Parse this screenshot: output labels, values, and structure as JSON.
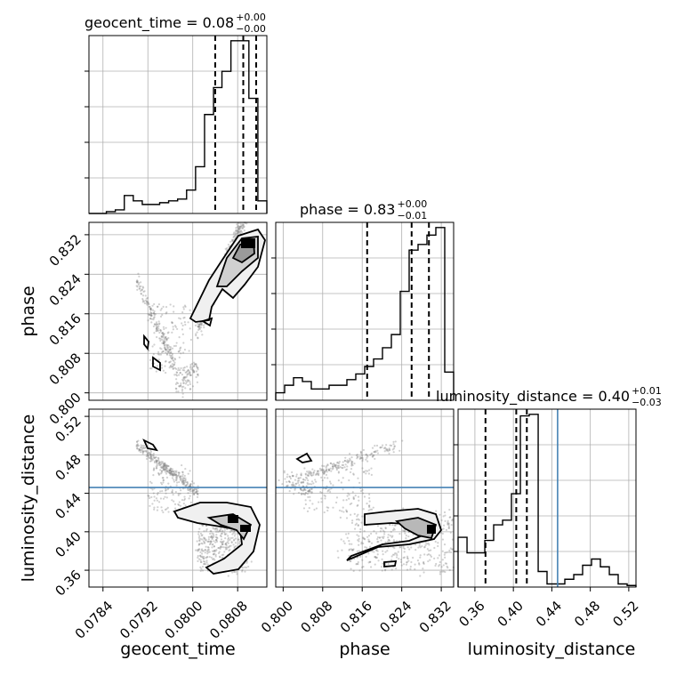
{
  "chart_data": {
    "type": "corner",
    "parameters": [
      "geocent_time",
      "phase",
      "luminosity_distance"
    ],
    "titles": [
      {
        "base": "geocent_time = 0.08",
        "sup": "+0.00",
        "sub": "−0.00"
      },
      {
        "base": "phase = 0.83",
        "sup": "+0.00",
        "sub": "−0.01"
      },
      {
        "base": "luminosity_distance = 0.40",
        "sup": "+0.01",
        "sub": "−0.03"
      }
    ],
    "axes": {
      "geocent_time": {
        "range": [
          0.07815,
          0.08132
        ],
        "ticks": [
          "0.0784",
          "0.0792",
          "0.0800",
          "0.0808"
        ],
        "tick_values": [
          0.0784,
          0.0792,
          0.08,
          0.0808
        ]
      },
      "phase": {
        "range": [
          0.7985,
          0.8345
        ],
        "ticks": [
          "0.800",
          "0.808",
          "0.816",
          "0.824",
          "0.832"
        ],
        "tick_values": [
          0.8,
          0.808,
          0.816,
          0.824,
          0.832
        ]
      },
      "luminosity_distance": {
        "range": [
          0.3425,
          0.5275
        ],
        "ticks": [
          "0.36",
          "0.40",
          "0.44",
          "0.48",
          "0.52"
        ],
        "tick_values": [
          0.36,
          0.4,
          0.44,
          0.48,
          0.52
        ]
      }
    },
    "quantiles": {
      "geocent_time": [
        0.0804,
        0.0809,
        0.08113
      ],
      "phase": [
        0.817,
        0.826,
        0.8295
      ],
      "luminosity_distance": [
        0.371,
        0.403,
        0.414
      ]
    },
    "truth": {
      "luminosity_distance": 0.446
    },
    "histograms": {
      "geocent_time": {
        "edges": [
          0.07815,
          0.0783,
          0.07846,
          0.07862,
          0.07878,
          0.07894,
          0.0791,
          0.07925,
          0.07941,
          0.07957,
          0.07973,
          0.07989,
          0.08005,
          0.08021,
          0.08037,
          0.08052,
          0.08068,
          0.08084,
          0.081,
          0.08116,
          0.08132
        ],
        "counts": [
          0,
          0,
          1,
          2,
          10,
          7,
          5,
          5,
          6,
          7,
          8,
          13,
          26,
          55,
          70,
          79,
          96,
          96,
          64,
          7
        ]
      },
      "phase": {
        "edges": [
          0.7985,
          0.8003,
          0.8021,
          0.8039,
          0.8057,
          0.8075,
          0.8093,
          0.8111,
          0.8129,
          0.8147,
          0.8165,
          0.8183,
          0.8201,
          0.8219,
          0.8237,
          0.8255,
          0.8273,
          0.8291,
          0.8309,
          0.8327,
          0.8345
        ],
        "counts": [
          4,
          8,
          12,
          10,
          6,
          6,
          8,
          8,
          11,
          14,
          18,
          22,
          28,
          35,
          58,
          80,
          83,
          88,
          92,
          15
        ]
      },
      "luminosity_distance": {
        "edges": [
          0.3425,
          0.3518,
          0.361,
          0.3703,
          0.3795,
          0.3888,
          0.398,
          0.4073,
          0.4165,
          0.4258,
          0.435,
          0.4443,
          0.4535,
          0.4628,
          0.472,
          0.4813,
          0.4905,
          0.4998,
          0.509,
          0.5183,
          0.5275
        ],
        "counts": [
          32,
          22,
          22,
          30,
          40,
          43,
          60,
          110,
          111,
          10,
          2,
          2,
          5,
          8,
          14,
          18,
          13,
          8,
          2,
          1
        ]
      }
    },
    "xlabels": [
      "geocent_time",
      "phase",
      "luminosity_distance"
    ],
    "ylabels": [
      "phase",
      "luminosity_distance"
    ],
    "grid": true
  }
}
